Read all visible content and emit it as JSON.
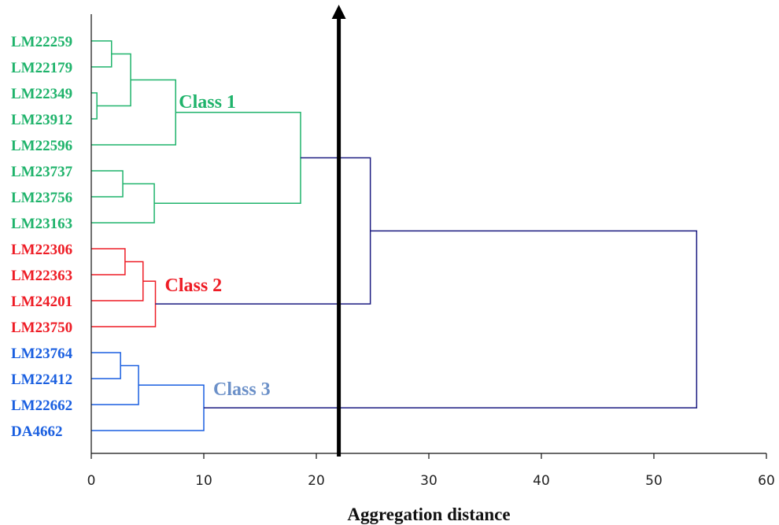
{
  "chart_data": {
    "type": "dendrogram",
    "xlabel": "Aggregation distance",
    "xlim": [
      0,
      60
    ],
    "xticks": [
      0,
      10,
      20,
      30,
      40,
      50,
      60
    ],
    "cut_distance": 22,
    "leaves": [
      {
        "label": "LM22259",
        "class": 0
      },
      {
        "label": "LM22179",
        "class": 0
      },
      {
        "label": "LM22349",
        "class": 0
      },
      {
        "label": "LM23912",
        "class": 0
      },
      {
        "label": "LM22596",
        "class": 0
      },
      {
        "label": "LM23737",
        "class": 0
      },
      {
        "label": "LM23756",
        "class": 0
      },
      {
        "label": "LM23163",
        "class": 0
      },
      {
        "label": "LM22306",
        "class": 1
      },
      {
        "label": "LM22363",
        "class": 1
      },
      {
        "label": "LM24201",
        "class": 1
      },
      {
        "label": "LM23750",
        "class": 1
      },
      {
        "label": "LM23764",
        "class": 2
      },
      {
        "label": "LM22412",
        "class": 2
      },
      {
        "label": "LM22662",
        "class": 2
      },
      {
        "label": "DA4662",
        "class": 2
      }
    ],
    "classes": [
      {
        "label": "Class 1",
        "color": "#1fb36b",
        "label_color": "#1fb36b"
      },
      {
        "label": "Class 2",
        "color": "#ee1c25",
        "label_color": "#ee1c25"
      },
      {
        "label": "Class 3",
        "color": "#1a5fe0",
        "label_color": "#6b90c8"
      }
    ],
    "link_color": "#1a1a80",
    "merges": [
      {
        "a": "L0",
        "b": "L1",
        "height": 1.8,
        "color": 0
      },
      {
        "a": "L2",
        "b": "L3",
        "height": 0.5,
        "color": 0
      },
      {
        "a": "M0",
        "b": "M1",
        "height": 3.5,
        "color": 0
      },
      {
        "a": "M2",
        "b": "L4",
        "height": 7.5,
        "color": 0
      },
      {
        "a": "L5",
        "b": "L6",
        "height": 2.8,
        "color": 0
      },
      {
        "a": "M4",
        "b": "L7",
        "height": 5.6,
        "color": 0
      },
      {
        "a": "M3",
        "b": "M5",
        "height": 18.6,
        "color": 0
      },
      {
        "a": "L8",
        "b": "L9",
        "height": 3.0,
        "color": 1
      },
      {
        "a": "M7",
        "b": "L10",
        "height": 4.6,
        "color": 1
      },
      {
        "a": "M8",
        "b": "L11",
        "height": 5.7,
        "color": 1
      },
      {
        "a": "M6",
        "b": "M9",
        "height": 24.8,
        "color": -1
      },
      {
        "a": "L12",
        "b": "L13",
        "height": 2.6,
        "color": 2
      },
      {
        "a": "M11",
        "b": "L14",
        "height": 4.2,
        "color": 2
      },
      {
        "a": "M12",
        "b": "L15",
        "height": 10.0,
        "color": 2
      },
      {
        "a": "M10",
        "b": "M13",
        "height": 53.8,
        "color": -1
      }
    ]
  }
}
